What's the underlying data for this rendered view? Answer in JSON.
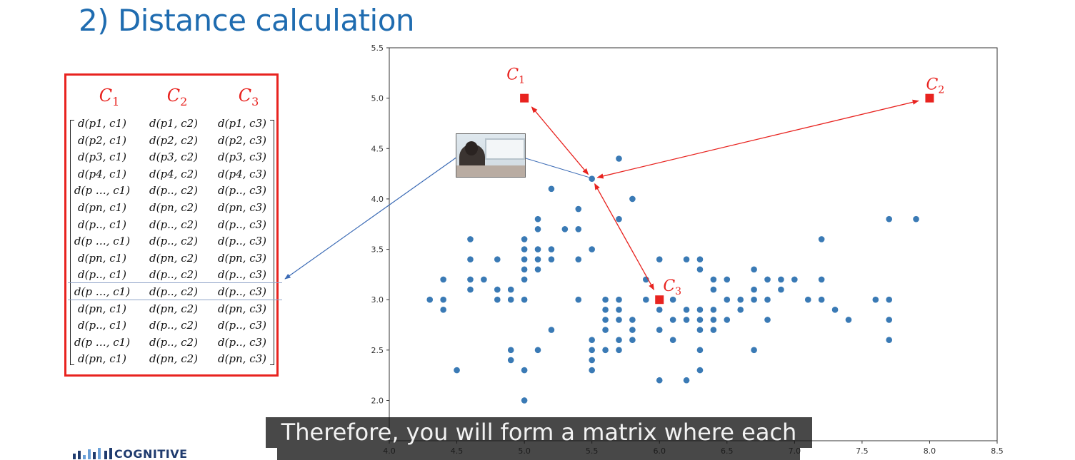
{
  "slide": {
    "title": "2) Distance calculation",
    "caption": "Therefore, you will form a matrix where each",
    "logo_text": "COGNITIVE"
  },
  "matrix": {
    "headers": [
      "C1",
      "C2",
      "C3"
    ],
    "rows": [
      [
        "d(p1, c1)",
        "d(p1, c2)",
        "d(p1, c3)"
      ],
      [
        "d(p2, c1)",
        "d(p2, c2)",
        "d(p2, c3)"
      ],
      [
        "d(p3, c1)",
        "d(p3, c2)",
        "d(p3, c3)"
      ],
      [
        "d(p4, c1)",
        "d(p4, c2)",
        "d(p4, c3)"
      ],
      [
        "d(p …, c1)",
        "d(p.., c2)",
        "d(p.., c3)"
      ],
      [
        "d(pn, c1)",
        "d(pn, c2)",
        "d(pn, c3)"
      ],
      [
        "d(p.., c1)",
        "d(p.., c2)",
        "d(p.., c3)"
      ],
      [
        "d(p …, c1)",
        "d(p.., c2)",
        "d(p.., c3)"
      ],
      [
        "d(pn, c1)",
        "d(pn, c2)",
        "d(pn, c3)"
      ],
      [
        "d(p.., c1)",
        "d(p.., c2)",
        "d(p.., c3)"
      ],
      [
        "d(p …, c1)",
        "d(p.., c2)",
        "d(p.., c3)"
      ],
      [
        "d(pn, c1)",
        "d(pn, c2)",
        "d(pn, c3)"
      ],
      [
        "d(p.., c1)",
        "d(p.., c2)",
        "d(p.., c3)"
      ],
      [
        "d(p …, c1)",
        "d(p.., c2)",
        "d(p.., c3)"
      ],
      [
        "d(pn, c1)",
        "d(pn, c2)",
        "d(pn, c3)"
      ]
    ],
    "highlighted_row": 10,
    "colors": {
      "border": "#e8231f",
      "header": "#e8231f"
    }
  },
  "chart_data": {
    "type": "scatter",
    "xlim": [
      4.0,
      8.5
    ],
    "ylim": [
      1.6,
      5.5
    ],
    "xticks": [
      "4.0",
      "4.5",
      "5.0",
      "5.5",
      "6.0",
      "6.5",
      "7.0",
      "7.5",
      "8.0",
      "8.5"
    ],
    "yticks": [
      "2.0",
      "2.5",
      "3.0",
      "3.5",
      "4.0",
      "4.5",
      "5.0",
      "5.5"
    ],
    "grid": false,
    "colors": {
      "points": "#3a7ab5",
      "centroids": "#e8231f",
      "arrows": "#e8231f",
      "link": "#3a6ab5"
    },
    "centroids": [
      {
        "label": "C1",
        "x": 5.0,
        "y": 5.0
      },
      {
        "label": "C2",
        "x": 8.0,
        "y": 5.0
      },
      {
        "label": "C3",
        "x": 6.0,
        "y": 3.0
      }
    ],
    "highlighted_point": {
      "x": 5.5,
      "y": 4.2
    },
    "points": [
      [
        4.3,
        3.0
      ],
      [
        4.4,
        2.9
      ],
      [
        4.4,
        3.0
      ],
      [
        4.4,
        3.2
      ],
      [
        4.5,
        2.3
      ],
      [
        4.6,
        3.1
      ],
      [
        4.6,
        3.2
      ],
      [
        4.6,
        3.4
      ],
      [
        4.6,
        3.6
      ],
      [
        4.7,
        3.2
      ],
      [
        4.8,
        3.0
      ],
      [
        4.8,
        3.1
      ],
      [
        4.8,
        3.4
      ],
      [
        4.9,
        2.4
      ],
      [
        4.9,
        2.5
      ],
      [
        4.9,
        3.0
      ],
      [
        4.9,
        3.1
      ],
      [
        5.0,
        2.0
      ],
      [
        5.0,
        2.3
      ],
      [
        5.0,
        3.0
      ],
      [
        5.0,
        3.2
      ],
      [
        5.0,
        3.3
      ],
      [
        5.0,
        3.4
      ],
      [
        5.0,
        3.5
      ],
      [
        5.0,
        3.6
      ],
      [
        5.1,
        3.3
      ],
      [
        5.1,
        3.4
      ],
      [
        5.1,
        3.5
      ],
      [
        5.1,
        3.7
      ],
      [
        5.1,
        3.8
      ],
      [
        5.1,
        2.5
      ],
      [
        5.2,
        2.7
      ],
      [
        5.2,
        3.4
      ],
      [
        5.2,
        3.5
      ],
      [
        5.2,
        4.1
      ],
      [
        5.3,
        3.7
      ],
      [
        5.4,
        3.0
      ],
      [
        5.4,
        3.4
      ],
      [
        5.4,
        3.7
      ],
      [
        5.4,
        3.9
      ],
      [
        5.5,
        2.3
      ],
      [
        5.5,
        2.4
      ],
      [
        5.5,
        2.5
      ],
      [
        5.5,
        2.6
      ],
      [
        5.5,
        3.5
      ],
      [
        5.5,
        4.2
      ],
      [
        5.6,
        2.5
      ],
      [
        5.6,
        2.7
      ],
      [
        5.6,
        2.8
      ],
      [
        5.6,
        2.9
      ],
      [
        5.6,
        3.0
      ],
      [
        5.7,
        2.5
      ],
      [
        5.7,
        2.6
      ],
      [
        5.7,
        2.8
      ],
      [
        5.7,
        2.9
      ],
      [
        5.7,
        3.0
      ],
      [
        5.7,
        3.8
      ],
      [
        5.7,
        4.4
      ],
      [
        5.8,
        2.6
      ],
      [
        5.8,
        2.7
      ],
      [
        5.8,
        2.8
      ],
      [
        5.8,
        4.0
      ],
      [
        5.9,
        3.0
      ],
      [
        5.9,
        3.2
      ],
      [
        6.0,
        2.2
      ],
      [
        6.0,
        2.7
      ],
      [
        6.0,
        2.9
      ],
      [
        6.0,
        3.4
      ],
      [
        6.1,
        2.6
      ],
      [
        6.1,
        2.8
      ],
      [
        6.1,
        3.0
      ],
      [
        6.2,
        2.2
      ],
      [
        6.2,
        2.8
      ],
      [
        6.2,
        2.9
      ],
      [
        6.2,
        3.4
      ],
      [
        6.3,
        2.3
      ],
      [
        6.3,
        2.5
      ],
      [
        6.3,
        2.7
      ],
      [
        6.3,
        2.8
      ],
      [
        6.3,
        2.9
      ],
      [
        6.3,
        3.3
      ],
      [
        6.3,
        3.4
      ],
      [
        6.4,
        2.7
      ],
      [
        6.4,
        2.8
      ],
      [
        6.4,
        2.9
      ],
      [
        6.4,
        3.1
      ],
      [
        6.4,
        3.2
      ],
      [
        6.5,
        2.8
      ],
      [
        6.5,
        3.0
      ],
      [
        6.5,
        3.2
      ],
      [
        6.6,
        2.9
      ],
      [
        6.6,
        3.0
      ],
      [
        6.7,
        2.5
      ],
      [
        6.7,
        3.0
      ],
      [
        6.7,
        3.1
      ],
      [
        6.7,
        3.3
      ],
      [
        6.8,
        2.8
      ],
      [
        6.8,
        3.0
      ],
      [
        6.8,
        3.2
      ],
      [
        6.9,
        3.1
      ],
      [
        6.9,
        3.2
      ],
      [
        7.0,
        3.2
      ],
      [
        7.1,
        3.0
      ],
      [
        7.2,
        3.0
      ],
      [
        7.2,
        3.2
      ],
      [
        7.2,
        3.6
      ],
      [
        7.3,
        2.9
      ],
      [
        7.4,
        2.8
      ],
      [
        7.6,
        3.0
      ],
      [
        7.7,
        2.6
      ],
      [
        7.7,
        2.8
      ],
      [
        7.7,
        3.0
      ],
      [
        7.7,
        3.8
      ],
      [
        7.9,
        3.8
      ]
    ]
  }
}
